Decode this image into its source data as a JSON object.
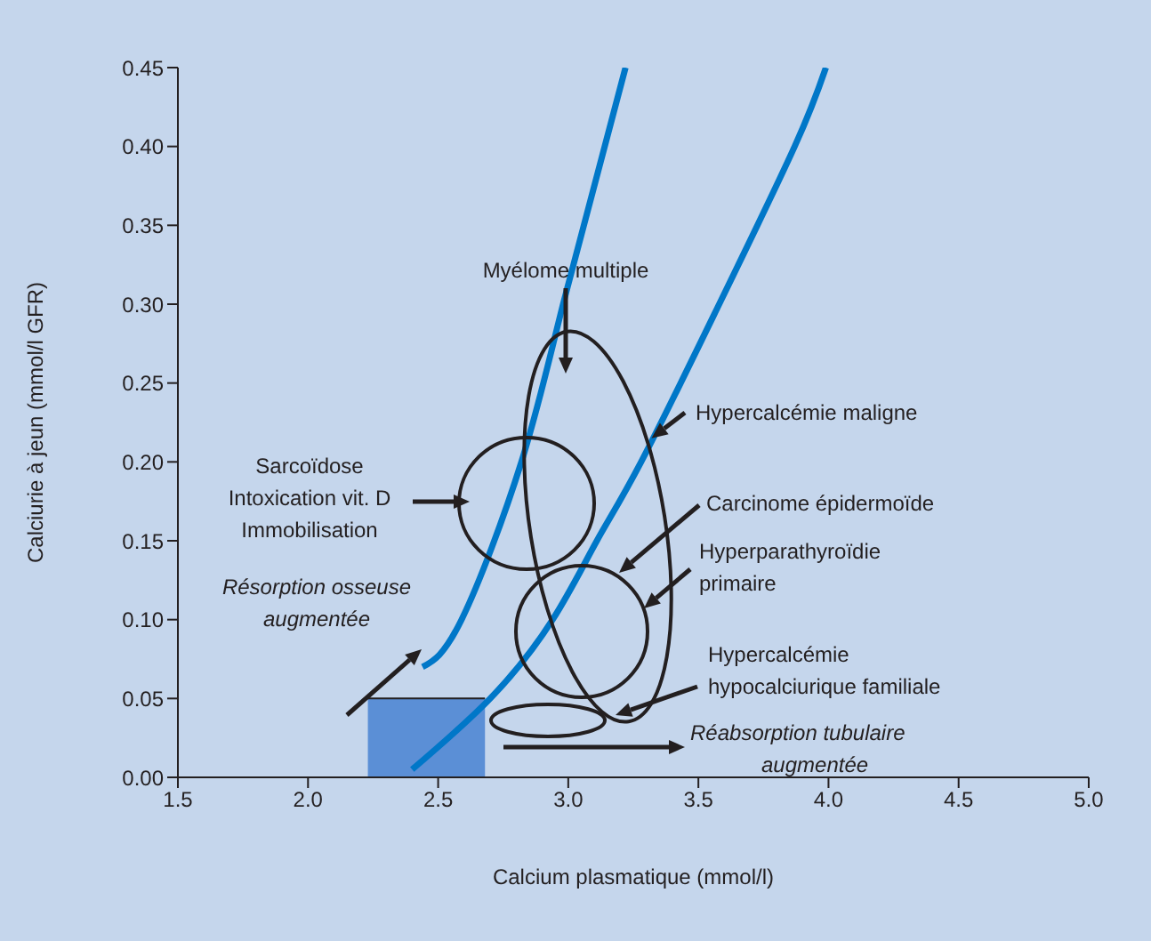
{
  "chart_data": {
    "type": "line",
    "xlabel": "Calcium plasmatique (mmol/l)",
    "ylabel": "Calciurie à jeun (mmol/l GFR)",
    "xlim": [
      1.5,
      5.0
    ],
    "xticks": [
      1.5,
      {
        "value": 2,
        "label": "2.0"
      },
      2.5,
      {
        "value": 3,
        "label": "3.0"
      },
      3.5,
      {
        "value": 4,
        "label": "4.0"
      },
      4.5,
      {
        "value": 5,
        "label": "5.0"
      }
    ],
    "ylim": [
      0,
      0.45
    ],
    "yticks": [
      {
        "value": 0,
        "label": "0.00"
      },
      0.05,
      {
        "value": 0.1,
        "label": "0.10"
      },
      0.15,
      {
        "value": 0.2,
        "label": "0.20"
      },
      0.25,
      {
        "value": 0.3,
        "label": "0.30"
      },
      0.35,
      {
        "value": 0.4,
        "label": "0.40"
      },
      0.45
    ],
    "marker": "none",
    "line_style": "solid",
    "series": [
      {
        "type": "area",
        "color": "#5b8fd6",
        "x": [
          2.23,
          2.68
        ],
        "values": [
          0.05,
          0.05
        ]
      },
      {
        "color": "#0077c8",
        "x": [
          2.44,
          2.59,
          2.82,
          2.98,
          3.22
        ],
        "values": [
          0.07,
          0.1,
          0.2,
          0.3,
          0.45
        ]
      },
      {
        "color": "#0077c8",
        "x": [
          2.4,
          2.7,
          2.94,
          3.11,
          3.28,
          3.58,
          3.87,
          3.99
        ],
        "values": [
          0.005,
          0.05,
          0.1,
          0.15,
          0.2,
          0.3,
          0.4,
          0.45
        ]
      }
    ],
    "annotations": [
      "Myélome multiple",
      {
        "text": "Hypercalcémie maligne",
        "x": 3.32,
        "y": 0.215
      },
      "Carcinome épidermoïde",
      "Hyperparathyroïdie\nprimaire",
      "Hypercalcémie\nhypocalciurique familiale",
      "Sarcoïdose\nIntoxication vit. D\nImmobilisation",
      "Résorption osseuse\naugmentée",
      "Réabsorption tubulaire\naugmentée"
    ]
  }
}
